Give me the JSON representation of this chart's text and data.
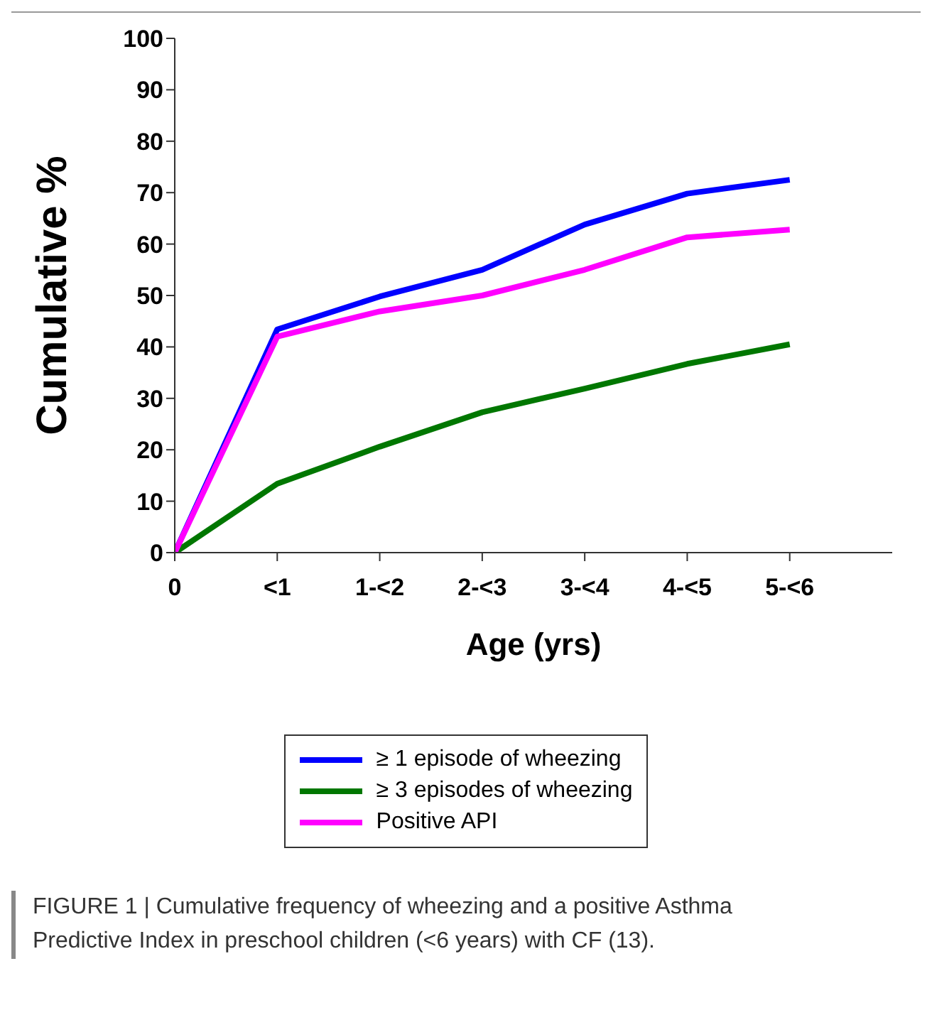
{
  "chart_data": {
    "type": "line",
    "xlabel": "Age (yrs)",
    "ylabel": "Cumulative %",
    "categories": [
      "0",
      "<1",
      "1-<2",
      "2-<3",
      "3-<4",
      "4-<5",
      "5-<6"
    ],
    "series": [
      {
        "name": "≥ 1 episode of wheezing",
        "color": "#0000ff",
        "values": [
          0,
          43.4,
          49.8,
          55,
          63.8,
          69.8,
          72.5
        ]
      },
      {
        "name": "≥ 3 episodes of wheezing",
        "color": "#007700",
        "values": [
          0,
          13.4,
          20.6,
          27.3,
          31.9,
          36.7,
          40.5
        ]
      },
      {
        "name": "Positive API",
        "color": "#ff00ff",
        "values": [
          0,
          42,
          46.9,
          50,
          55,
          61.3,
          62.8
        ]
      }
    ],
    "ylim": [
      0,
      100
    ],
    "yticks": [
      0,
      10,
      20,
      30,
      40,
      50,
      60,
      70,
      80,
      90,
      100
    ],
    "grid": false,
    "legend": "bottom",
    "marker": "none",
    "line_style": "solid",
    "annotations": [
      "FIGURE 1 | Cumulative frequency of wheezing and a positive Asthma Predictive Index in preschool children (<6 years) with CF (13)."
    ]
  }
}
